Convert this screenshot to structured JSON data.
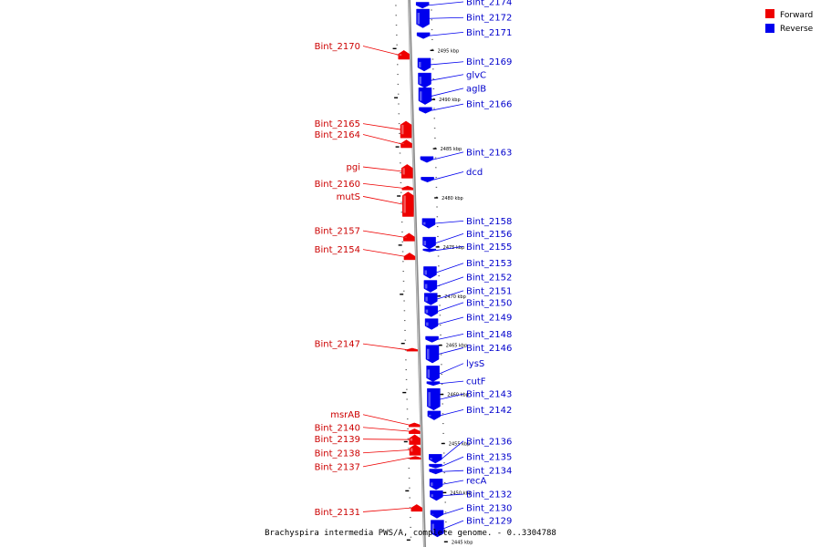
{
  "caption": "Brachyspira intermedia PWS/A, complete genome. - 0..3304788",
  "legend": [
    {
      "label": "Forward",
      "color": "#ee0000"
    },
    {
      "label": "Reverse",
      "color": "#0000ee"
    }
  ],
  "chart_data": {
    "type": "genome-map",
    "axis_unit": "kbp",
    "axis_range_kbp": [
      2443,
      2500
    ],
    "position_markers_kbp": [
      2495,
      2490,
      2485,
      2480,
      2475,
      2470,
      2465,
      2460,
      2455,
      2450,
      2445
    ],
    "genes": [
      {
        "name": "Bint_2174",
        "strand": "reverse",
        "start_kbp": 2499.9,
        "end_kbp": 2499.3
      },
      {
        "name": "Bint_2172",
        "strand": "reverse",
        "start_kbp": 2499.2,
        "end_kbp": 2497.3
      },
      {
        "name": "Bint_2171",
        "strand": "reverse",
        "start_kbp": 2496.8,
        "end_kbp": 2496.2
      },
      {
        "name": "Bint_2170",
        "strand": "forward",
        "start_kbp": 2495.0,
        "end_kbp": 2494.1
      },
      {
        "name": "Bint_2169",
        "strand": "reverse",
        "start_kbp": 2494.2,
        "end_kbp": 2492.9
      },
      {
        "name": "glvC",
        "strand": "reverse",
        "start_kbp": 2492.7,
        "end_kbp": 2491.2
      },
      {
        "name": "aglB",
        "strand": "reverse",
        "start_kbp": 2491.2,
        "end_kbp": 2489.5
      },
      {
        "name": "Bint_2166",
        "strand": "reverse",
        "start_kbp": 2489.2,
        "end_kbp": 2488.6
      },
      {
        "name": "Bint_2165",
        "strand": "forward",
        "start_kbp": 2487.8,
        "end_kbp": 2486.1
      },
      {
        "name": "Bint_2164",
        "strand": "forward",
        "start_kbp": 2485.9,
        "end_kbp": 2485.1
      },
      {
        "name": "Bint_2163",
        "strand": "reverse",
        "start_kbp": 2484.2,
        "end_kbp": 2483.6
      },
      {
        "name": "pgi",
        "strand": "forward",
        "start_kbp": 2483.4,
        "end_kbp": 2482.0
      },
      {
        "name": "dcd",
        "strand": "reverse",
        "start_kbp": 2482.1,
        "end_kbp": 2481.6
      },
      {
        "name": "Bint_2160",
        "strand": "forward",
        "start_kbp": 2481.2,
        "end_kbp": 2480.8
      },
      {
        "name": "mutS",
        "strand": "forward",
        "start_kbp": 2480.6,
        "end_kbp": 2478.1
      },
      {
        "name": "Bint_2158",
        "strand": "reverse",
        "start_kbp": 2477.9,
        "end_kbp": 2476.9
      },
      {
        "name": "Bint_2157",
        "strand": "forward",
        "start_kbp": 2476.4,
        "end_kbp": 2475.6
      },
      {
        "name": "Bint_2156",
        "strand": "reverse",
        "start_kbp": 2476.0,
        "end_kbp": 2474.8
      },
      {
        "name": "Bint_2155",
        "strand": "reverse",
        "start_kbp": 2474.8,
        "end_kbp": 2474.5
      },
      {
        "name": "Bint_2154",
        "strand": "forward",
        "start_kbp": 2474.4,
        "end_kbp": 2473.7
      },
      {
        "name": "Bint_2153",
        "strand": "reverse",
        "start_kbp": 2473.0,
        "end_kbp": 2471.8
      },
      {
        "name": "Bint_2152",
        "strand": "reverse",
        "start_kbp": 2471.6,
        "end_kbp": 2470.4
      },
      {
        "name": "Bint_2151",
        "strand": "reverse",
        "start_kbp": 2470.3,
        "end_kbp": 2469.1
      },
      {
        "name": "Bint_2150",
        "strand": "reverse",
        "start_kbp": 2469.0,
        "end_kbp": 2467.9
      },
      {
        "name": "Bint_2149",
        "strand": "reverse",
        "start_kbp": 2467.7,
        "end_kbp": 2466.6
      },
      {
        "name": "Bint_2148",
        "strand": "reverse",
        "start_kbp": 2465.9,
        "end_kbp": 2465.3
      },
      {
        "name": "Bint_2147",
        "strand": "forward",
        "start_kbp": 2464.7,
        "end_kbp": 2464.4
      },
      {
        "name": "Bint_2146",
        "strand": "reverse",
        "start_kbp": 2465.0,
        "end_kbp": 2463.2
      },
      {
        "name": "lysS",
        "strand": "reverse",
        "start_kbp": 2462.9,
        "end_kbp": 2461.3
      },
      {
        "name": "cutF",
        "strand": "reverse",
        "start_kbp": 2461.3,
        "end_kbp": 2460.9
      },
      {
        "name": "Bint_2143",
        "strand": "reverse",
        "start_kbp": 2460.6,
        "end_kbp": 2458.4
      },
      {
        "name": "Bint_2142",
        "strand": "reverse",
        "start_kbp": 2458.3,
        "end_kbp": 2457.4
      },
      {
        "name": "msrAB",
        "strand": "forward",
        "start_kbp": 2457.1,
        "end_kbp": 2456.7
      },
      {
        "name": "Bint_2140",
        "strand": "forward",
        "start_kbp": 2456.5,
        "end_kbp": 2456.0
      },
      {
        "name": "Bint_2139",
        "strand": "forward",
        "start_kbp": 2455.9,
        "end_kbp": 2454.9
      },
      {
        "name": "Bint_2138",
        "strand": "forward",
        "start_kbp": 2454.9,
        "end_kbp": 2453.8
      },
      {
        "name": "Bint_2136",
        "strand": "reverse",
        "start_kbp": 2453.9,
        "end_kbp": 2453.0
      },
      {
        "name": "Bint_2137",
        "strand": "forward",
        "start_kbp": 2453.7,
        "end_kbp": 2453.4
      },
      {
        "name": "Bint_2135",
        "strand": "reverse",
        "start_kbp": 2452.9,
        "end_kbp": 2452.5
      },
      {
        "name": "Bint_2134",
        "strand": "reverse",
        "start_kbp": 2452.4,
        "end_kbp": 2451.9
      },
      {
        "name": "recA",
        "strand": "reverse",
        "start_kbp": 2451.4,
        "end_kbp": 2450.3
      },
      {
        "name": "Bint_2132",
        "strand": "reverse",
        "start_kbp": 2450.2,
        "end_kbp": 2449.2
      },
      {
        "name": "Bint_2131",
        "strand": "forward",
        "start_kbp": 2448.8,
        "end_kbp": 2448.1
      },
      {
        "name": "Bint_2130",
        "strand": "reverse",
        "start_kbp": 2448.2,
        "end_kbp": 2447.4
      },
      {
        "name": "Bint_2129",
        "strand": "reverse",
        "start_kbp": 2447.2,
        "end_kbp": 2445.5
      }
    ],
    "label_positions_kbp": {
      "Bint_2174": 2499.9,
      "Bint_2172": 2498.3,
      "Bint_2171": 2496.8,
      "Bint_2170": 2495.4,
      "Bint_2169": 2493.8,
      "glvC": 2492.5,
      "aglB": 2491.1,
      "Bint_2166": 2489.5,
      "Bint_2165": 2487.5,
      "Bint_2164": 2486.4,
      "Bint_2163": 2484.6,
      "pgi": 2483.1,
      "dcd": 2482.6,
      "Bint_2160": 2481.4,
      "mutS": 2480.1,
      "Bint_2158": 2477.6,
      "Bint_2157": 2476.6,
      "Bint_2156": 2476.3,
      "Bint_2155": 2475.0,
      "Bint_2154": 2474.7,
      "Bint_2153": 2473.3,
      "Bint_2152": 2471.9,
      "Bint_2151": 2470.5,
      "Bint_2150": 2469.3,
      "Bint_2149": 2467.8,
      "Bint_2148": 2466.1,
      "Bint_2147": 2465.1,
      "Bint_2146": 2464.7,
      "lysS": 2463.1,
      "cutF": 2461.3,
      "Bint_2143": 2460.0,
      "Bint_2142": 2458.4,
      "msrAB": 2457.9,
      "Bint_2140": 2456.6,
      "Bint_2139": 2455.4,
      "Bint_2138": 2454.0,
      "Bint_2136": 2455.2,
      "Bint_2137": 2452.6,
      "Bint_2135": 2453.6,
      "Bint_2134": 2452.2,
      "recA": 2451.2,
      "Bint_2132": 2449.8,
      "Bint_2131": 2448.0,
      "Bint_2130": 2448.4,
      "Bint_2129": 2447.1
    }
  }
}
